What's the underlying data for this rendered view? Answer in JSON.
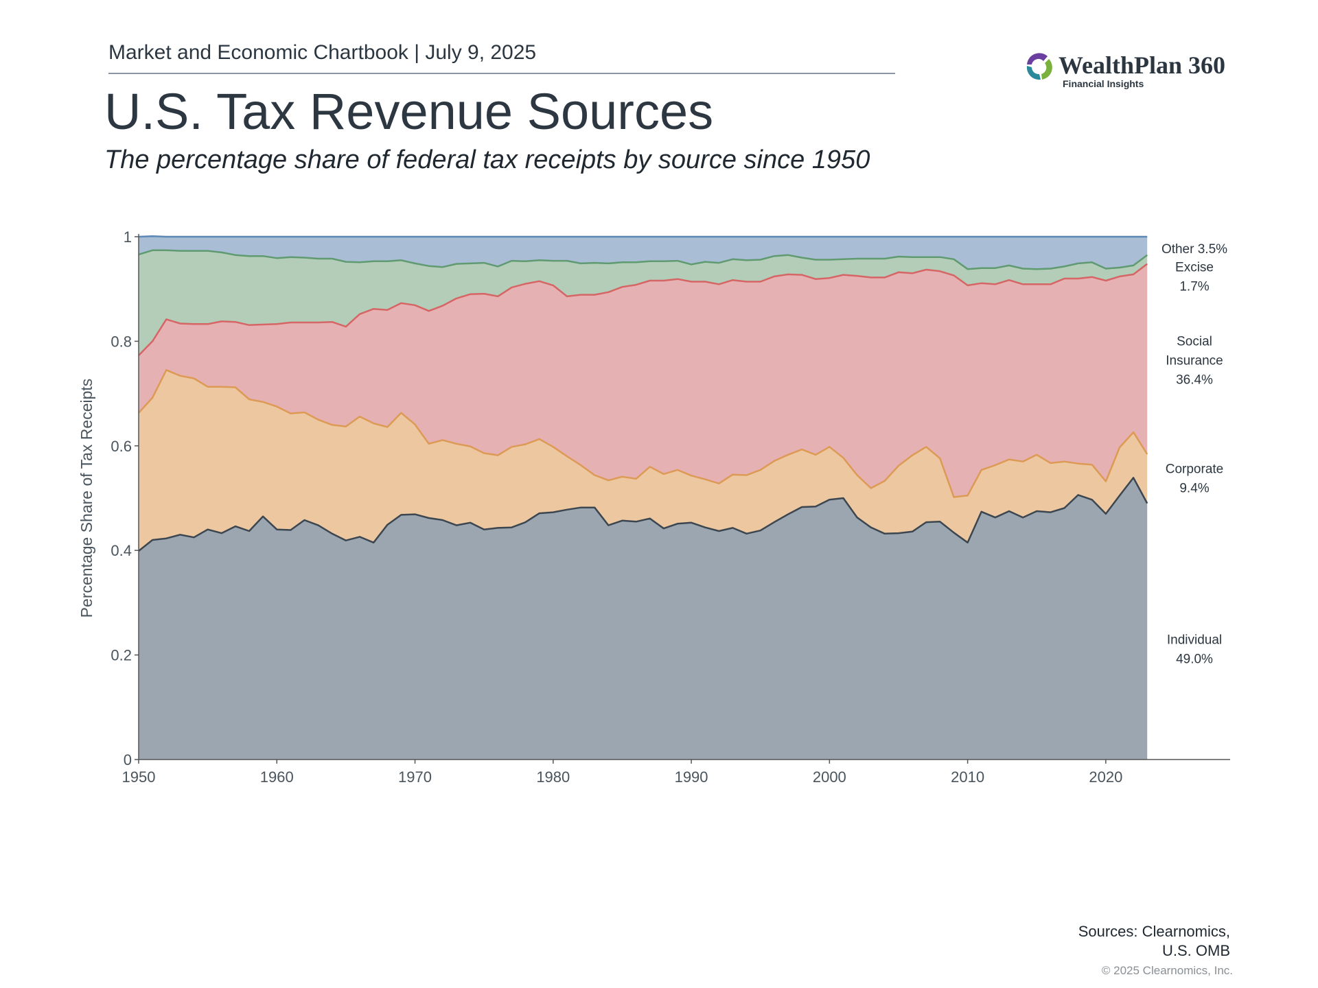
{
  "header": {
    "report_label": "Market and Economic Chartbook | July 9, 2025",
    "title": "U.S. Tax Revenue Sources",
    "subtitle": "The percentage share of federal tax receipts by source since 1950"
  },
  "logo": {
    "name": "WealthPlan 360",
    "tagline": "Financial Insights",
    "colors": [
      "#6a3fa0",
      "#2a8a9a",
      "#7ab03c"
    ]
  },
  "footer": {
    "sources_line1": "Sources: Clearnomics,",
    "sources_line2": "U.S. OMB",
    "copyright": "© 2025 Clearnomics, Inc."
  },
  "chart_data": {
    "type": "area",
    "stacked": true,
    "ylabel": "Percentage Share of Tax Receipts",
    "xlim": [
      1950,
      2029
    ],
    "ylim": [
      0,
      1
    ],
    "x_ticks": [
      "1950",
      "1960",
      "1970",
      "1980",
      "1990",
      "2000",
      "2010",
      "2020"
    ],
    "y_ticks": [
      "0",
      "0.2",
      "0.4",
      "0.6",
      "0.8",
      "1"
    ],
    "grid": false,
    "legend_placement": "right, inline labels",
    "x": [
      1950,
      1951,
      1952,
      1953,
      1954,
      1955,
      1956,
      1957,
      1958,
      1959,
      1960,
      1961,
      1962,
      1963,
      1964,
      1965,
      1966,
      1967,
      1968,
      1969,
      1970,
      1971,
      1972,
      1973,
      1974,
      1975,
      1976,
      1977,
      1978,
      1979,
      1980,
      1981,
      1982,
      1983,
      1984,
      1985,
      1986,
      1987,
      1988,
      1989,
      1990,
      1991,
      1992,
      1993,
      1994,
      1995,
      1996,
      1997,
      1998,
      1999,
      2000,
      2001,
      2002,
      2003,
      2004,
      2005,
      2006,
      2007,
      2008,
      2009,
      2010,
      2011,
      2012,
      2013,
      2014,
      2015,
      2016,
      2017,
      2018,
      2019,
      2020,
      2021,
      2022,
      2023
    ],
    "series": [
      {
        "name": "Individual",
        "color": "#9ba6b0",
        "line": "#3b4650",
        "label_lines": [
          "Individual",
          "49.0%"
        ],
        "values": [
          0.399,
          0.42,
          0.423,
          0.43,
          0.425,
          0.44,
          0.433,
          0.446,
          0.437,
          0.465,
          0.44,
          0.439,
          0.458,
          0.448,
          0.432,
          0.419,
          0.426,
          0.415,
          0.449,
          0.468,
          0.469,
          0.462,
          0.458,
          0.448,
          0.453,
          0.44,
          0.443,
          0.444,
          0.454,
          0.471,
          0.473,
          0.478,
          0.482,
          0.482,
          0.448,
          0.457,
          0.455,
          0.461,
          0.442,
          0.451,
          0.453,
          0.444,
          0.437,
          0.443,
          0.432,
          0.438,
          0.454,
          0.469,
          0.483,
          0.484,
          0.497,
          0.5,
          0.463,
          0.444,
          0.432,
          0.433,
          0.436,
          0.454,
          0.455,
          0.434,
          0.415,
          0.474,
          0.463,
          0.475,
          0.463,
          0.475,
          0.473,
          0.481,
          0.506,
          0.497,
          0.47,
          0.505,
          0.539,
          0.49
        ]
      },
      {
        "name": "Corporate",
        "color": "#ecc7a0",
        "line": "#dd9a55",
        "label_lines": [
          "Corporate",
          "9.4%"
        ],
        "values": [
          0.264,
          0.272,
          0.322,
          0.304,
          0.304,
          0.273,
          0.28,
          0.266,
          0.252,
          0.219,
          0.235,
          0.223,
          0.206,
          0.202,
          0.208,
          0.218,
          0.23,
          0.228,
          0.187,
          0.195,
          0.172,
          0.142,
          0.153,
          0.156,
          0.146,
          0.146,
          0.139,
          0.154,
          0.149,
          0.142,
          0.125,
          0.102,
          0.081,
          0.062,
          0.086,
          0.084,
          0.082,
          0.099,
          0.104,
          0.103,
          0.09,
          0.092,
          0.091,
          0.102,
          0.112,
          0.116,
          0.117,
          0.114,
          0.11,
          0.099,
          0.101,
          0.077,
          0.081,
          0.075,
          0.101,
          0.129,
          0.146,
          0.144,
          0.121,
          0.068,
          0.09,
          0.08,
          0.1,
          0.099,
          0.107,
          0.108,
          0.094,
          0.089,
          0.06,
          0.067,
          0.062,
          0.092,
          0.087,
          0.094
        ]
      },
      {
        "name": "Social Insurance",
        "color": "#e5b1b2",
        "line": "#d66565",
        "label_lines": [
          "Social",
          "Insurance",
          "36.4%"
        ],
        "values": [
          0.11,
          0.108,
          0.097,
          0.1,
          0.104,
          0.12,
          0.125,
          0.125,
          0.142,
          0.148,
          0.158,
          0.174,
          0.172,
          0.186,
          0.197,
          0.191,
          0.196,
          0.219,
          0.224,
          0.21,
          0.228,
          0.254,
          0.257,
          0.278,
          0.291,
          0.305,
          0.304,
          0.305,
          0.307,
          0.302,
          0.309,
          0.306,
          0.326,
          0.345,
          0.36,
          0.363,
          0.371,
          0.356,
          0.37,
          0.365,
          0.371,
          0.378,
          0.381,
          0.372,
          0.37,
          0.36,
          0.353,
          0.345,
          0.334,
          0.336,
          0.323,
          0.35,
          0.381,
          0.403,
          0.389,
          0.37,
          0.348,
          0.339,
          0.358,
          0.424,
          0.402,
          0.357,
          0.346,
          0.343,
          0.339,
          0.326,
          0.342,
          0.35,
          0.354,
          0.359,
          0.384,
          0.327,
          0.302,
          0.364
        ]
      },
      {
        "name": "Excise",
        "color": "#b3cdb9",
        "line": "#5f9a70",
        "label_lines": [
          "Excise",
          "1.7%"
        ],
        "values": [
          0.193,
          0.174,
          0.132,
          0.139,
          0.14,
          0.14,
          0.132,
          0.128,
          0.132,
          0.131,
          0.126,
          0.125,
          0.124,
          0.122,
          0.121,
          0.124,
          0.099,
          0.091,
          0.093,
          0.082,
          0.08,
          0.086,
          0.074,
          0.066,
          0.059,
          0.059,
          0.057,
          0.051,
          0.043,
          0.04,
          0.047,
          0.068,
          0.06,
          0.061,
          0.055,
          0.047,
          0.043,
          0.037,
          0.037,
          0.035,
          0.033,
          0.038,
          0.041,
          0.04,
          0.041,
          0.042,
          0.039,
          0.037,
          0.033,
          0.037,
          0.035,
          0.03,
          0.033,
          0.036,
          0.036,
          0.03,
          0.031,
          0.024,
          0.027,
          0.031,
          0.031,
          0.029,
          0.031,
          0.028,
          0.03,
          0.029,
          0.03,
          0.023,
          0.029,
          0.028,
          0.023,
          0.017,
          0.017,
          0.017
        ]
      },
      {
        "name": "Other",
        "color": "#a9bdd5",
        "line": "#5b88b5",
        "label_lines": [
          "Other  3.5%"
        ],
        "values": [
          0.034,
          0.027,
          0.026,
          0.027,
          0.027,
          0.027,
          0.03,
          0.035,
          0.037,
          0.037,
          0.041,
          0.039,
          0.04,
          0.042,
          0.042,
          0.048,
          0.049,
          0.047,
          0.047,
          0.045,
          0.051,
          0.056,
          0.058,
          0.052,
          0.051,
          0.05,
          0.057,
          0.046,
          0.047,
          0.045,
          0.046,
          0.046,
          0.051,
          0.05,
          0.051,
          0.049,
          0.049,
          0.047,
          0.047,
          0.046,
          0.053,
          0.048,
          0.05,
          0.043,
          0.045,
          0.044,
          0.037,
          0.035,
          0.04,
          0.044,
          0.044,
          0.043,
          0.042,
          0.042,
          0.042,
          0.038,
          0.039,
          0.039,
          0.039,
          0.043,
          0.062,
          0.06,
          0.06,
          0.055,
          0.061,
          0.062,
          0.061,
          0.057,
          0.051,
          0.049,
          0.061,
          0.059,
          0.055,
          0.035
        ]
      }
    ]
  }
}
